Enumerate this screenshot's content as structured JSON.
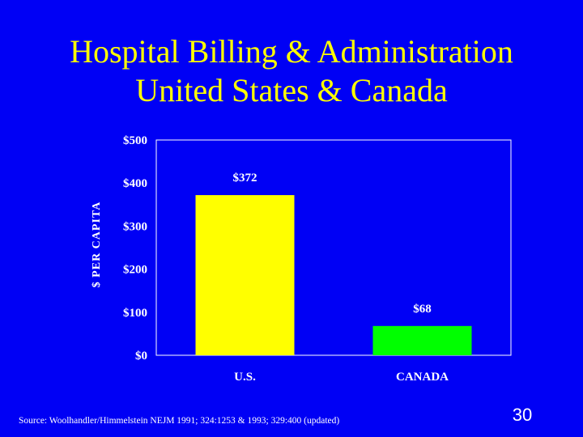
{
  "slide": {
    "title_line1": "Hospital Billing & Administration",
    "title_line2": "United States & Canada",
    "source": "Source: Woolhandler/Himmelstein NEJM 1991; 324:1253 & 1993; 329:400 (updated)",
    "page_number": "30"
  },
  "colors": {
    "background": "#0000f5",
    "title": "#ffff00",
    "text": "#ffffff",
    "us_bar": "#ffff00",
    "canada_bar": "#00ff00"
  },
  "chart_data": {
    "type": "bar",
    "categories": [
      "U.S.",
      "CANADA"
    ],
    "values": [
      372,
      68
    ],
    "data_labels": [
      "$372",
      "$68"
    ],
    "bar_colors": [
      "#ffff00",
      "#00ff00"
    ],
    "ylabel": "$ PER CAPITA",
    "ylim": [
      0,
      500
    ],
    "yticks": [
      0,
      100,
      200,
      300,
      400,
      500
    ],
    "ytick_labels": [
      "$0",
      "$100",
      "$200",
      "$300",
      "$400",
      "$500"
    ],
    "grid": false,
    "legend": "none"
  }
}
